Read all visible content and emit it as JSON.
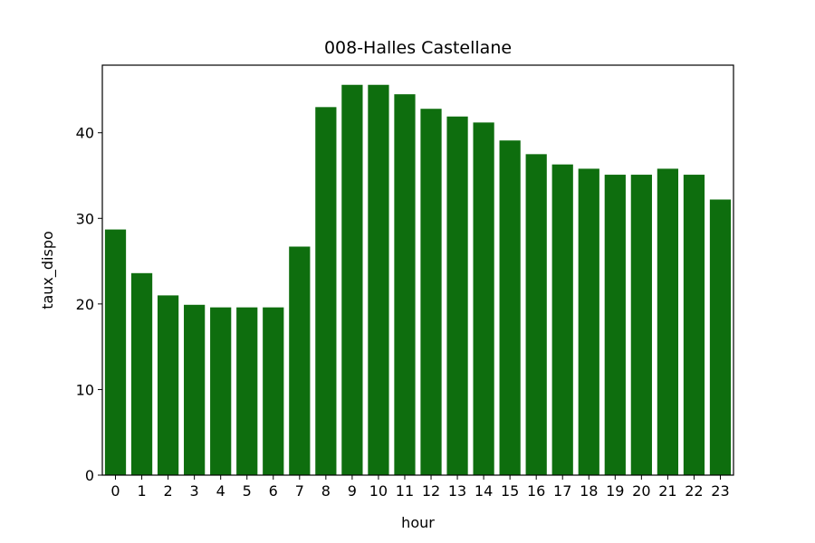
{
  "chart_data": {
    "type": "bar",
    "title": "008-Halles Castellane",
    "xlabel": "hour",
    "ylabel": "taux_dispo",
    "categories": [
      "0",
      "1",
      "2",
      "3",
      "4",
      "5",
      "6",
      "7",
      "8",
      "9",
      "10",
      "11",
      "12",
      "13",
      "14",
      "15",
      "16",
      "17",
      "18",
      "19",
      "20",
      "21",
      "22",
      "23"
    ],
    "values": [
      28.7,
      23.6,
      21.0,
      19.9,
      19.6,
      19.6,
      19.6,
      26.7,
      43.0,
      45.6,
      45.6,
      44.5,
      42.8,
      41.9,
      41.2,
      39.1,
      37.5,
      36.3,
      35.8,
      35.1,
      35.1,
      35.8,
      35.1,
      32.2
    ],
    "yticks": [
      0,
      10,
      20,
      30,
      40
    ],
    "ylim": [
      0,
      47.9
    ],
    "bar_color": "#0e6e0e",
    "grid": false,
    "legend": "none"
  }
}
